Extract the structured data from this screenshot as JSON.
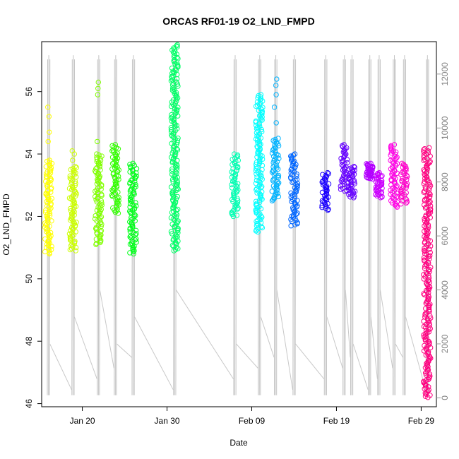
{
  "chart_data": {
    "type": "scatter",
    "title": "ORCAS RF01-19 O2_LND_FMPD",
    "xlabel": "Date",
    "ylabel": "O2_LND_FMPD",
    "x_ticks": [
      "Jan 20",
      "Jan 30",
      "Feb 09",
      "Feb 19",
      "Feb 29"
    ],
    "x_tick_days": [
      20,
      30,
      40,
      50,
      60
    ],
    "xlim": [
      15.2,
      61.8
    ],
    "ylim": [
      45.9,
      57.6
    ],
    "y_ticks": [
      46,
      48,
      50,
      52,
      54,
      56
    ],
    "y2_ticks": [
      0,
      2000,
      4000,
      6000,
      8000,
      10000,
      12000
    ],
    "y2lim": [
      -330,
      13200
    ],
    "altitude_range": [
      100,
      12700
    ],
    "grid": false,
    "series": [
      {
        "day": 16.0,
        "color": "#FFFF00",
        "core": [
          50.8,
          53.8
        ],
        "outliers": [
          54.4,
          54.7,
          55.2,
          55.5
        ]
      },
      {
        "day": 18.9,
        "color": "#CCFF00",
        "core": [
          50.9,
          53.6
        ],
        "outliers": [
          53.8,
          54.0,
          54.1
        ]
      },
      {
        "day": 21.9,
        "color": "#80FF00",
        "core": [
          51.1,
          54.0
        ],
        "outliers": [
          54.4,
          55.9,
          56.1,
          56.3
        ]
      },
      {
        "day": 23.9,
        "color": "#33FF00",
        "core": [
          52.1,
          54.3
        ],
        "outliers": []
      },
      {
        "day": 26.0,
        "color": "#00FF1A",
        "core": [
          50.8,
          53.7
        ],
        "outliers": []
      },
      {
        "day": 30.9,
        "color": "#00FF66",
        "core": [
          50.9,
          57.5
        ],
        "outliers": []
      },
      {
        "day": 38.0,
        "color": "#00FFB3",
        "core": [
          52.0,
          54.0
        ],
        "outliers": []
      },
      {
        "day": 40.9,
        "color": "#00FFFF",
        "core": [
          51.5,
          55.9
        ],
        "outliers": []
      },
      {
        "day": 42.8,
        "color": "#00B3FF",
        "core": [
          52.5,
          54.5
        ],
        "outliers": [
          55.0,
          55.5,
          55.9,
          56.2,
          56.4
        ]
      },
      {
        "day": 45.0,
        "color": "#0066FF",
        "core": [
          51.7,
          54.0
        ],
        "outliers": []
      },
      {
        "day": 48.7,
        "color": "#1A00FF",
        "core": [
          52.2,
          53.4
        ],
        "outliers": []
      },
      {
        "day": 50.9,
        "color": "#6600FF",
        "core": [
          52.8,
          54.3
        ],
        "outliers": []
      },
      {
        "day": 51.8,
        "color": "#6600FF",
        "core": [
          52.6,
          53.6
        ],
        "outliers": []
      },
      {
        "day": 53.9,
        "color": "#B300FF",
        "core": [
          53.2,
          53.7
        ],
        "outliers": []
      },
      {
        "day": 55.0,
        "color": "#CC00FF",
        "core": [
          52.6,
          53.4
        ],
        "outliers": []
      },
      {
        "day": 56.8,
        "color": "#FF00E6",
        "core": [
          52.3,
          54.3
        ],
        "outliers": []
      },
      {
        "day": 58.0,
        "color": "#FF00CC",
        "core": [
          52.4,
          53.7
        ],
        "outliers": []
      },
      {
        "day": 60.7,
        "color": "#FF0080",
        "core": [
          46.2,
          54.2
        ],
        "outliers": []
      }
    ]
  }
}
